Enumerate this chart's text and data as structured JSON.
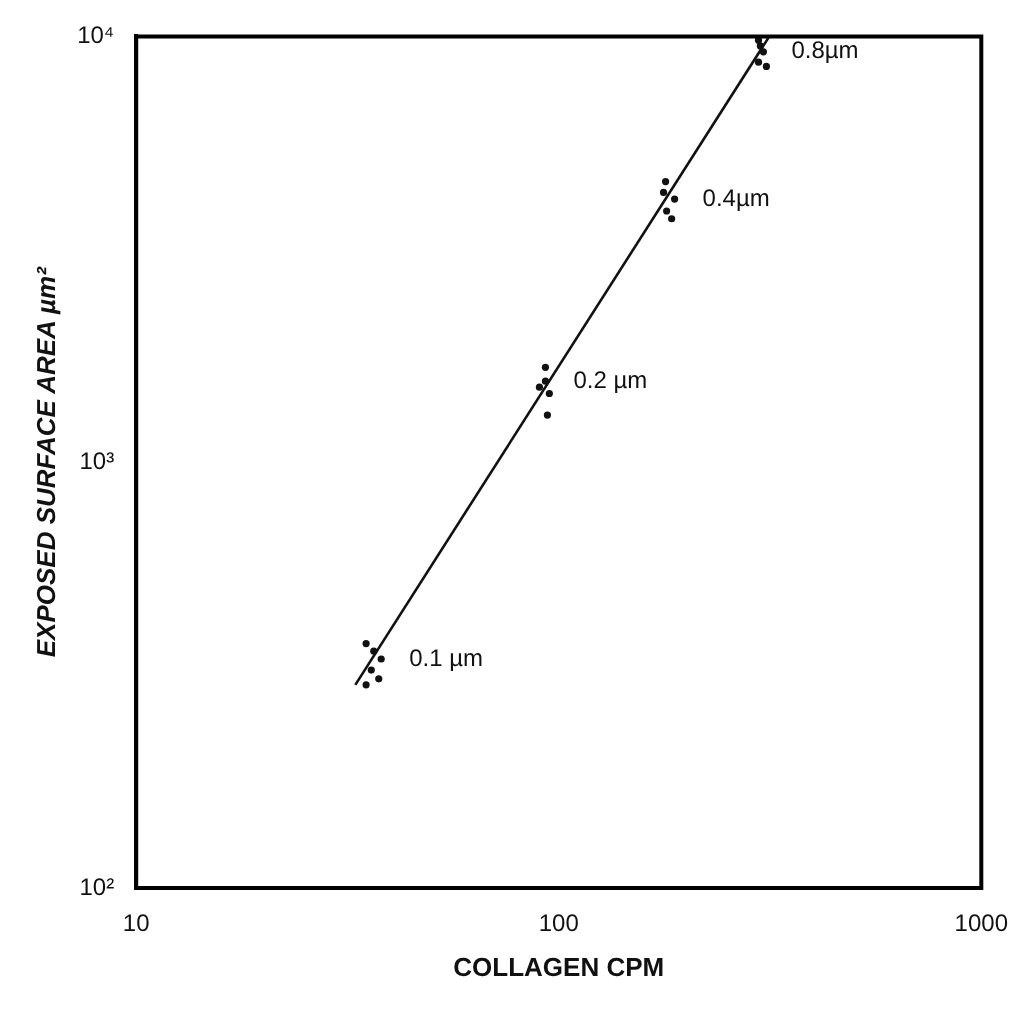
{
  "chart_data": {
    "type": "scatter",
    "xlabel": "COLLAGEN CPM",
    "ylabel": "EXPOSED SURFACE AREA µm²",
    "log": "xy",
    "grid": false,
    "marker": "circle",
    "xlim": [
      10,
      1000
    ],
    "xticks": [
      10,
      100,
      1000
    ],
    "ylim": [
      100,
      10000
    ],
    "yticks": [
      {
        "value": 100,
        "label": "10²"
      },
      {
        "value": 1000,
        "label": "10³"
      },
      {
        "value": 10000,
        "label": "10⁴"
      }
    ],
    "series": [
      {
        "color": "#111111",
        "x": [
          35,
          36.5,
          38,
          36,
          37.5,
          35,
          93,
          90,
          93,
          95,
          94,
          179,
          177,
          188,
          180,
          185,
          297,
          300,
          305,
          297,
          310
        ],
        "values": [
          375,
          360,
          345,
          325,
          310,
          300,
          1670,
          1500,
          1550,
          1450,
          1290,
          4560,
          4300,
          4150,
          3890,
          3730,
          9800,
          9500,
          9200,
          8700,
          8500
        ]
      },
      {
        "type": "line",
        "color": "#111111",
        "marker": "none",
        "x": [
          33,
          315
        ],
        "values": [
          300,
          10000
        ]
      }
    ],
    "annotations": [
      {
        "text": "0.1 µm",
        "x": 38,
        "y": 345
      },
      {
        "text": "0.2 µm",
        "x": 93,
        "y": 1550
      },
      {
        "text": "0.4µm",
        "x": 188,
        "y": 4150
      },
      {
        "text": "0.8µm",
        "x": 305,
        "y": 9200
      }
    ]
  }
}
